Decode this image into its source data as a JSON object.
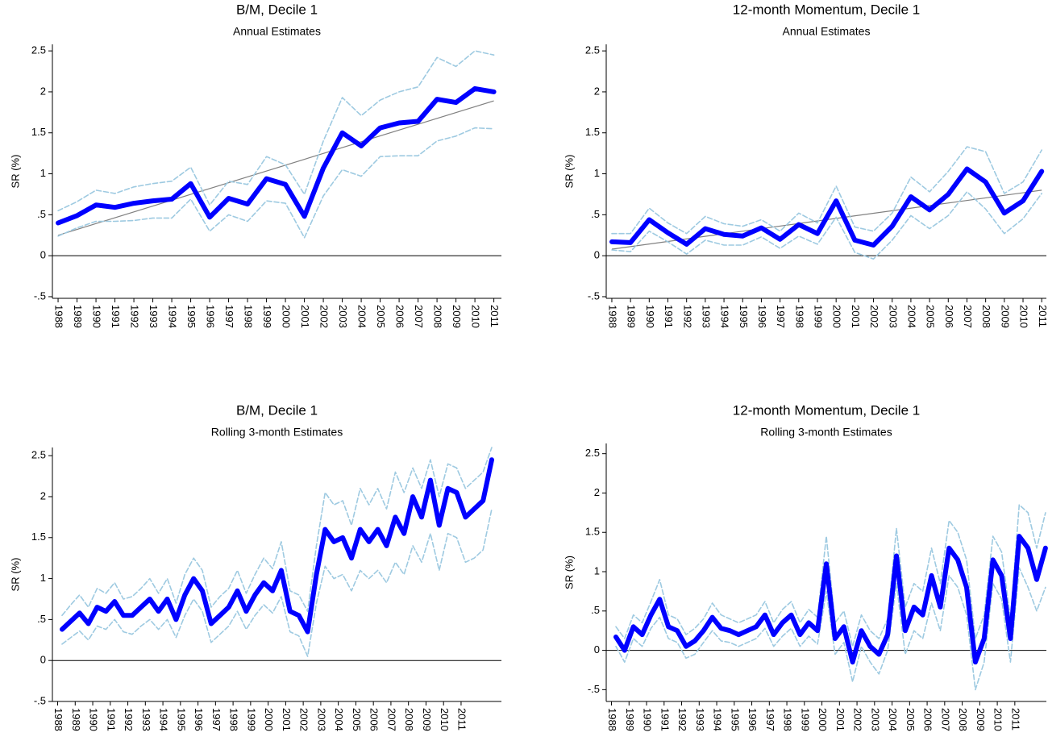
{
  "chart_data": [
    {
      "type": "line",
      "title": "B/M, Decile 1",
      "subtitle": "Annual Estimates",
      "ylabel": "SR (%)",
      "x": [
        1988,
        1989,
        1990,
        1991,
        1992,
        1993,
        1994,
        1995,
        1996,
        1997,
        1998,
        1999,
        2000,
        2001,
        2002,
        2003,
        2004,
        2005,
        2006,
        2007,
        2008,
        2009,
        2010,
        2011
      ],
      "xlim": [
        1987.7,
        2011.4
      ],
      "xticks": [
        1988,
        1989,
        1990,
        1991,
        1992,
        1993,
        1994,
        1995,
        1996,
        1997,
        1998,
        1999,
        2000,
        2001,
        2002,
        2003,
        2004,
        2005,
        2006,
        2007,
        2008,
        2009,
        2010,
        2011
      ],
      "ylim": [
        -0.52,
        2.58
      ],
      "yticks": [
        {
          "value": -0.5,
          "label": "-.5"
        },
        0,
        {
          "value": 0.5,
          "label": ".5"
        },
        1,
        1.5,
        2,
        2.5
      ],
      "yline": 0,
      "series": [
        {
          "style": "dashed",
          "color": "#9ecae1",
          "values": [
            0.55,
            0.66,
            0.8,
            0.76,
            0.84,
            0.88,
            0.91,
            1.08,
            0.62,
            0.91,
            0.87,
            1.21,
            1.11,
            0.75,
            1.4,
            1.93,
            1.71,
            1.9,
            2.0,
            2.06,
            2.42,
            2.31,
            2.5,
            2.45
          ]
        },
        {
          "style": "dashed",
          "color": "#9ecae1",
          "values": [
            0.24,
            0.34,
            0.42,
            0.42,
            0.43,
            0.46,
            0.46,
            0.69,
            0.3,
            0.5,
            0.42,
            0.67,
            0.64,
            0.22,
            0.73,
            1.05,
            0.97,
            1.21,
            1.22,
            1.22,
            1.4,
            1.46,
            1.56,
            1.55
          ]
        },
        {
          "style": "solid",
          "color": "#0000ff",
          "values": [
            0.4,
            0.49,
            0.62,
            0.59,
            0.64,
            0.67,
            0.69,
            0.88,
            0.47,
            0.7,
            0.63,
            0.94,
            0.87,
            0.48,
            1.07,
            1.5,
            1.34,
            1.56,
            1.62,
            1.64,
            1.91,
            1.87,
            2.04,
            2.0
          ]
        }
      ],
      "trend": {
        "color": "#808080",
        "x": [
          1988,
          2011
        ],
        "values": [
          0.25,
          1.89
        ]
      }
    },
    {
      "type": "line",
      "title": "12-month Momentum, Decile 1",
      "subtitle": "Annual Estimates",
      "ylabel": "SR (%)",
      "x": [
        1988,
        1989,
        1990,
        1991,
        1992,
        1993,
        1994,
        1995,
        1996,
        1997,
        1998,
        1999,
        2000,
        2001,
        2002,
        2003,
        2004,
        2005,
        2006,
        2007,
        2008,
        2009,
        2010,
        2011
      ],
      "xlim": [
        1987.7,
        2011.25
      ],
      "xticks": [
        1988,
        1989,
        1990,
        1991,
        1992,
        1993,
        1994,
        1995,
        1996,
        1997,
        1998,
        1999,
        2000,
        2001,
        2002,
        2003,
        2004,
        2005,
        2006,
        2007,
        2008,
        2009,
        2010,
        2011
      ],
      "ylim": [
        -0.52,
        2.58
      ],
      "yticks": [
        {
          "value": -0.5,
          "label": "-.5"
        },
        0,
        {
          "value": 0.5,
          "label": ".5"
        },
        1,
        1.5,
        2,
        2.5
      ],
      "yline": 0,
      "series": [
        {
          "style": "dashed",
          "color": "#9ecae1",
          "values": [
            0.27,
            0.27,
            0.58,
            0.4,
            0.27,
            0.48,
            0.39,
            0.36,
            0.44,
            0.3,
            0.52,
            0.4,
            0.85,
            0.35,
            0.3,
            0.52,
            0.96,
            0.78,
            1.03,
            1.33,
            1.27,
            0.76,
            0.9,
            1.29
          ]
        },
        {
          "style": "dashed",
          "color": "#9ecae1",
          "values": [
            0.07,
            0.05,
            0.3,
            0.17,
            0.02,
            0.19,
            0.13,
            0.13,
            0.23,
            0.09,
            0.24,
            0.14,
            0.47,
            0.04,
            -0.04,
            0.19,
            0.49,
            0.33,
            0.49,
            0.78,
            0.57,
            0.27,
            0.45,
            0.76
          ]
        },
        {
          "style": "solid",
          "color": "#0000ff",
          "values": [
            0.17,
            0.16,
            0.44,
            0.28,
            0.14,
            0.33,
            0.26,
            0.24,
            0.34,
            0.2,
            0.38,
            0.27,
            0.67,
            0.19,
            0.13,
            0.36,
            0.72,
            0.56,
            0.75,
            1.06,
            0.9,
            0.52,
            0.67,
            1.03
          ]
        }
      ],
      "trend": {
        "color": "#808080",
        "x": [
          1988,
          2011
        ],
        "values": [
          0.08,
          0.8
        ]
      }
    },
    {
      "type": "line",
      "title": "B/M, Decile 1",
      "subtitle": "Rolling 3-month Estimates",
      "ylabel": "SR (%)",
      "x": [
        1988.25,
        1988.75,
        1989.25,
        1989.75,
        1990.25,
        1990.75,
        1991.25,
        1991.75,
        1992.25,
        1992.75,
        1993.25,
        1993.75,
        1994.25,
        1994.75,
        1995.25,
        1995.75,
        1996.25,
        1996.75,
        1997.25,
        1997.75,
        1998.25,
        1998.75,
        1999.25,
        1999.75,
        2000.25,
        2000.75,
        2001.25,
        2001.75,
        2002.25,
        2002.75,
        2003.25,
        2003.75,
        2004.25,
        2004.75,
        2005.25,
        2005.75,
        2006.25,
        2006.75,
        2007.25,
        2007.75,
        2008.25,
        2008.75,
        2009.25,
        2009.75,
        2010.25,
        2010.75,
        2011.25,
        2011.75,
        2012.25,
        2012.75
      ],
      "xlim": [
        1987.7,
        2013.3
      ],
      "xticks": [
        1988,
        1989,
        1990,
        1991,
        1992,
        1993,
        1994,
        1995,
        1996,
        1997,
        1998,
        1999,
        2000,
        2001,
        2002,
        2003,
        2004,
        2005,
        2006,
        2007,
        2008,
        2009,
        2010,
        2011
      ],
      "ylim": [
        -0.5,
        2.6
      ],
      "yticks": [
        {
          "value": -0.5,
          "label": "-.5"
        },
        0,
        {
          "value": 0.5,
          "label": ".5"
        },
        1,
        1.5,
        2,
        2.5
      ],
      "yline": 0,
      "series": [
        {
          "style": "dashed",
          "color": "#9ecae1",
          "values": [
            0.55,
            0.68,
            0.8,
            0.65,
            0.88,
            0.82,
            0.95,
            0.75,
            0.78,
            0.88,
            1.0,
            0.82,
            1.0,
            0.7,
            1.05,
            1.25,
            1.1,
            0.65,
            0.78,
            0.88,
            1.1,
            0.82,
            1.05,
            1.25,
            1.12,
            1.45,
            0.85,
            0.8,
            0.6,
            1.4,
            2.05,
            1.9,
            1.95,
            1.65,
            2.1,
            1.9,
            2.1,
            1.85,
            2.3,
            2.05,
            2.35,
            2.1,
            2.45,
            2.0,
            2.4,
            2.35,
            2.1,
            2.2,
            2.3,
            2.6
          ]
        },
        {
          "style": "dashed",
          "color": "#9ecae1",
          "values": [
            0.2,
            0.28,
            0.36,
            0.25,
            0.42,
            0.38,
            0.5,
            0.35,
            0.32,
            0.42,
            0.5,
            0.38,
            0.5,
            0.28,
            0.55,
            0.75,
            0.6,
            0.22,
            0.32,
            0.42,
            0.6,
            0.38,
            0.55,
            0.68,
            0.58,
            0.78,
            0.35,
            0.3,
            0.05,
            0.7,
            1.15,
            1.0,
            1.05,
            0.85,
            1.1,
            1.0,
            1.1,
            0.95,
            1.2,
            1.05,
            1.4,
            1.2,
            1.55,
            1.1,
            1.55,
            1.5,
            1.2,
            1.25,
            1.35,
            1.85
          ]
        },
        {
          "style": "solid",
          "color": "#0000ff",
          "values": [
            0.38,
            0.48,
            0.58,
            0.45,
            0.65,
            0.6,
            0.72,
            0.55,
            0.55,
            0.65,
            0.75,
            0.6,
            0.75,
            0.5,
            0.8,
            1.0,
            0.85,
            0.45,
            0.55,
            0.65,
            0.85,
            0.6,
            0.8,
            0.95,
            0.85,
            1.1,
            0.6,
            0.55,
            0.35,
            1.05,
            1.6,
            1.45,
            1.5,
            1.25,
            1.6,
            1.45,
            1.6,
            1.4,
            1.75,
            1.55,
            2.0,
            1.75,
            2.2,
            1.65,
            2.1,
            2.05,
            1.75,
            1.85,
            1.95,
            2.45
          ]
        }
      ]
    },
    {
      "type": "line",
      "title": "12-month Momentum, Decile 1",
      "subtitle": "Rolling 3-month Estimates",
      "ylabel": "SR (%)",
      "x": [
        1988.25,
        1988.75,
        1989.25,
        1989.75,
        1990.25,
        1990.75,
        1991.25,
        1991.75,
        1992.25,
        1992.75,
        1993.25,
        1993.75,
        1994.25,
        1994.75,
        1995.25,
        1995.75,
        1996.25,
        1996.75,
        1997.25,
        1997.75,
        1998.25,
        1998.75,
        1999.25,
        1999.75,
        2000.25,
        2000.75,
        2001.25,
        2001.75,
        2002.25,
        2002.75,
        2003.25,
        2003.75,
        2004.25,
        2004.75,
        2005.25,
        2005.75,
        2006.25,
        2006.75,
        2007.25,
        2007.75,
        2008.25,
        2008.75,
        2009.25,
        2009.75,
        2010.25,
        2010.75,
        2011.25,
        2011.75,
        2012.25,
        2012.75
      ],
      "xlim": [
        1987.7,
        2012.8
      ],
      "xticks": [
        1988,
        1989,
        1990,
        1991,
        1992,
        1993,
        1994,
        1995,
        1996,
        1997,
        1998,
        1999,
        2000,
        2001,
        2002,
        2003,
        2004,
        2005,
        2006,
        2007,
        2008,
        2009,
        2010,
        2011
      ],
      "ylim": [
        -0.65,
        2.63
      ],
      "yticks": [
        {
          "value": -0.5,
          "label": "-.5"
        },
        0,
        {
          "value": 0.5,
          "label": ".5"
        },
        1,
        1.5,
        2,
        2.5
      ],
      "yline": 0,
      "series": [
        {
          "style": "dashed",
          "color": "#9ecae1",
          "values": [
            0.3,
            0.15,
            0.45,
            0.35,
            0.62,
            0.9,
            0.45,
            0.4,
            0.2,
            0.28,
            0.4,
            0.6,
            0.45,
            0.4,
            0.35,
            0.4,
            0.45,
            0.62,
            0.35,
            0.52,
            0.62,
            0.35,
            0.52,
            0.42,
            1.45,
            0.35,
            0.5,
            0.05,
            0.45,
            0.25,
            0.15,
            0.4,
            1.55,
            0.55,
            0.85,
            0.75,
            1.3,
            0.85,
            1.65,
            1.5,
            1.15,
            0.15,
            0.45,
            1.45,
            1.25,
            0.4,
            1.85,
            1.75,
            1.3,
            1.75
          ]
        },
        {
          "style": "dashed",
          "color": "#9ecae1",
          "values": [
            0.05,
            -0.15,
            0.15,
            0.05,
            0.28,
            0.42,
            0.15,
            0.1,
            -0.1,
            -0.05,
            0.1,
            0.25,
            0.12,
            0.1,
            0.05,
            0.1,
            0.15,
            0.28,
            0.05,
            0.18,
            0.28,
            0.05,
            0.18,
            0.08,
            0.75,
            -0.05,
            0.1,
            -0.4,
            0.05,
            -0.15,
            -0.3,
            0.0,
            0.85,
            -0.05,
            0.25,
            0.15,
            0.6,
            0.25,
            0.95,
            0.8,
            0.45,
            -0.5,
            -0.15,
            0.85,
            0.65,
            -0.15,
            1.05,
            0.8,
            0.5,
            0.8
          ]
        },
        {
          "style": "solid",
          "color": "#0000ff",
          "values": [
            0.17,
            0.0,
            0.3,
            0.2,
            0.45,
            0.65,
            0.3,
            0.25,
            0.05,
            0.12,
            0.25,
            0.42,
            0.28,
            0.25,
            0.2,
            0.25,
            0.3,
            0.45,
            0.2,
            0.35,
            0.45,
            0.2,
            0.35,
            0.25,
            1.1,
            0.15,
            0.3,
            -0.15,
            0.25,
            0.05,
            -0.05,
            0.2,
            1.2,
            0.25,
            0.55,
            0.45,
            0.95,
            0.55,
            1.3,
            1.15,
            0.8,
            -0.15,
            0.15,
            1.15,
            0.95,
            0.15,
            1.45,
            1.3,
            0.9,
            1.3
          ]
        }
      ]
    }
  ]
}
